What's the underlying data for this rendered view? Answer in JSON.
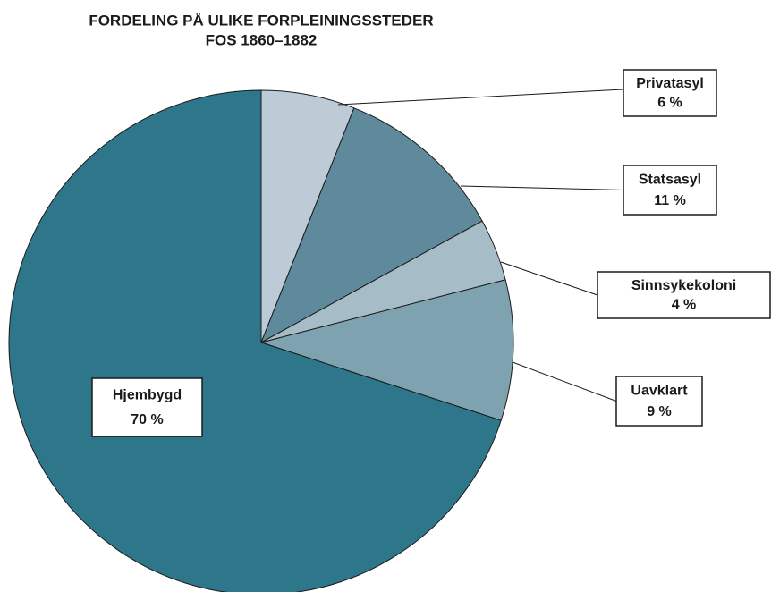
{
  "chart_data": {
    "type": "pie",
    "title": "FORDELING PÅ ULIKE FORPLEININGSSTEDER",
    "subtitle": "FOS 1860–1882",
    "categories": [
      "Privatasyl",
      "Statsasyl",
      "Sinnsykekoloni",
      "Uavklart",
      "Hjembygd"
    ],
    "values": [
      6,
      11,
      4,
      9,
      70
    ],
    "value_labels": [
      "6 %",
      "11 %",
      "4 %",
      "9 %",
      "70 %"
    ],
    "colors": [
      "#bccbd5",
      "#5e8a9c",
      "#a6bcc6",
      "#7fa2b1",
      "#2e768a"
    ]
  }
}
